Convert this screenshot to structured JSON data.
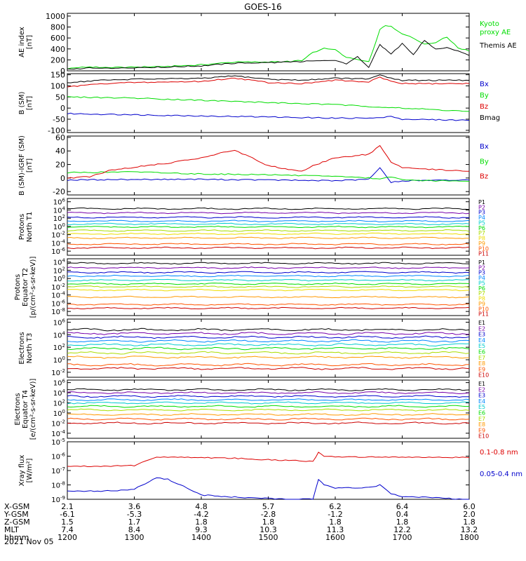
{
  "title": "GOES-16",
  "date": "2021 Nov 05",
  "chart_data": [
    {
      "type": "line",
      "ylabel": [
        "AE index",
        "[nT]"
      ],
      "yticks": [
        "0",
        "200",
        "400",
        "600",
        "800",
        "1000"
      ],
      "ylim": [
        0,
        1050
      ],
      "log": false,
      "series": [
        {
          "name": "Kyoto proxy AE",
          "color": "#00dd00",
          "x": [
            1200,
            1210,
            1220,
            1240,
            1300,
            1330,
            1400,
            1430,
            1500,
            1520,
            1530,
            1540,
            1550,
            1600,
            1610,
            1620,
            1630,
            1640,
            1645,
            1650,
            1700,
            1710,
            1720,
            1730,
            1740,
            1750,
            1800
          ],
          "values": [
            40,
            60,
            70,
            60,
            70,
            80,
            110,
            160,
            160,
            170,
            190,
            330,
            420,
            380,
            250,
            200,
            160,
            750,
            820,
            810,
            680,
            600,
            480,
            520,
            620,
            420,
            360
          ]
        },
        {
          "name": "Themis AE",
          "color": "#000000",
          "x": [
            1200,
            1220,
            1240,
            1300,
            1330,
            1400,
            1430,
            1500,
            1520,
            1540,
            1550,
            1600,
            1610,
            1620,
            1630,
            1640,
            1645,
            1650,
            1700,
            1710,
            1720,
            1730,
            1740,
            1750,
            1800
          ],
          "values": [
            30,
            50,
            40,
            60,
            70,
            90,
            140,
            150,
            160,
            180,
            190,
            180,
            130,
            260,
            60,
            480,
            390,
            300,
            500,
            300,
            560,
            390,
            420,
            360,
            280
          ]
        }
      ],
      "legend": [
        {
          "text": [
            "Kyoto",
            "proxy AE"
          ],
          "color": "#00dd00"
        },
        {
          "text": [
            "Themis AE"
          ],
          "color": "#000000"
        }
      ]
    },
    {
      "type": "line",
      "ylabel": [
        "B (SM)",
        "[nT]"
      ],
      "yticks": [
        "-100",
        "-50",
        "0",
        "50",
        "100",
        "150"
      ],
      "ylim": [
        -110,
        155
      ],
      "log": false,
      "series": [
        {
          "name": "Bx",
          "color": "#0000cc",
          "x": [
            1200,
            1300,
            1400,
            1500,
            1600,
            1640,
            1650,
            1700,
            1800
          ],
          "values": [
            -25,
            -30,
            -35,
            -40,
            -45,
            -45,
            -35,
            -50,
            -55
          ]
        },
        {
          "name": "By",
          "color": "#00dd00",
          "x": [
            1200,
            1300,
            1400,
            1500,
            1600,
            1700,
            1800
          ],
          "values": [
            50,
            45,
            35,
            25,
            15,
            0,
            -15
          ]
        },
        {
          "name": "Bz",
          "color": "#dd0000",
          "x": [
            1200,
            1230,
            1300,
            1400,
            1430,
            1500,
            1530,
            1600,
            1630,
            1640,
            1650,
            1700,
            1800
          ],
          "values": [
            95,
            110,
            115,
            120,
            135,
            115,
            110,
            125,
            118,
            140,
            120,
            110,
            110
          ]
        },
        {
          "name": "Bmag",
          "color": "#000000",
          "x": [
            1200,
            1230,
            1300,
            1400,
            1430,
            1500,
            1530,
            1600,
            1630,
            1640,
            1650,
            1700,
            1800
          ],
          "values": [
            115,
            125,
            130,
            133,
            145,
            130,
            125,
            135,
            130,
            150,
            135,
            125,
            125
          ]
        }
      ],
      "legend": [
        {
          "text": [
            "Bx"
          ],
          "color": "#0000cc"
        },
        {
          "text": [
            "By"
          ],
          "color": "#00dd00"
        },
        {
          "text": [
            "Bz"
          ],
          "color": "#dd0000"
        },
        {
          "text": [
            "Bmag"
          ],
          "color": "#000000"
        }
      ]
    },
    {
      "type": "line",
      "ylabel": [
        "B (SM)-IGRF (SM)",
        "[nT]"
      ],
      "yticks": [
        "-20",
        "0",
        "20",
        "40",
        "60"
      ],
      "ylim": [
        -25,
        62
      ],
      "log": false,
      "series": [
        {
          "name": "Bx",
          "color": "#0000cc",
          "x": [
            1200,
            1300,
            1400,
            1500,
            1600,
            1630,
            1640,
            1650,
            1700,
            1800
          ],
          "values": [
            -3,
            -2,
            -2,
            -3,
            -4,
            -2,
            15,
            -6,
            -4,
            -3
          ]
        },
        {
          "name": "By",
          "color": "#00dd00",
          "x": [
            1200,
            1300,
            1400,
            1500,
            1600,
            1630,
            1640,
            1650,
            1700,
            1800
          ],
          "values": [
            8,
            9,
            6,
            5,
            2,
            0,
            -2,
            2,
            -3,
            -5
          ]
        },
        {
          "name": "Bz",
          "color": "#dd0000",
          "x": [
            1200,
            1220,
            1240,
            1300,
            1330,
            1400,
            1420,
            1430,
            1440,
            1500,
            1530,
            1540,
            1600,
            1630,
            1640,
            1650,
            1700,
            1800
          ],
          "values": [
            0,
            2,
            12,
            16,
            22,
            30,
            38,
            40,
            34,
            18,
            10,
            18,
            30,
            35,
            48,
            24,
            15,
            10
          ]
        }
      ],
      "legend": [
        {
          "text": [
            "Bx"
          ],
          "color": "#0000cc"
        },
        {
          "text": [
            "By"
          ],
          "color": "#00dd00"
        },
        {
          "text": [
            "Bz"
          ],
          "color": "#dd0000"
        }
      ]
    },
    {
      "type": "line",
      "ylabel": [
        "Protons",
        "North T1"
      ],
      "yticks": [
        "10^-6",
        "10^-4",
        "10^-2",
        "10^0",
        "10^2",
        "10^4",
        "10^6"
      ],
      "ylim": [
        -7,
        6.8
      ],
      "log": true,
      "series": [
        {
          "name": "P1",
          "color": "#000000",
          "level": 4.3
        },
        {
          "name": "P2",
          "color": "#7700aa",
          "level": 3.3
        },
        {
          "name": "P3",
          "color": "#0000cc",
          "level": 2.2
        },
        {
          "name": "P4",
          "color": "#0088ff",
          "level": 1.3
        },
        {
          "name": "P5",
          "color": "#00cccc",
          "level": 0.6
        },
        {
          "name": "P6",
          "color": "#00dd00",
          "level": -0.1
        },
        {
          "name": "P7",
          "color": "#aadd00",
          "level": -1.0
        },
        {
          "name": "P8",
          "color": "#eedd00",
          "level": -1.8
        },
        {
          "name": "P9",
          "color": "#ff9900",
          "level": -2.8
        },
        {
          "name": "P10",
          "color": "#ff5500",
          "level": -4.3
        },
        {
          "name": "P11",
          "color": "#cc0000",
          "level": -5.2
        }
      ]
    },
    {
      "type": "line",
      "ylabel": [
        "Protons",
        "Equator T2",
        "[p/(cm²-s-sr-keV)]"
      ],
      "yticks": [
        "10^-8",
        "10^-6",
        "10^-4",
        "10^-2",
        "10^0",
        "10^2",
        "10^4"
      ],
      "ylim": [
        -9,
        4.8
      ],
      "log": true,
      "series": [
        {
          "name": "P1",
          "color": "#000000",
          "level": 3.7
        },
        {
          "name": "P2",
          "color": "#7700aa",
          "level": 2.6
        },
        {
          "name": "P3",
          "color": "#0000cc",
          "level": 1.5
        },
        {
          "name": "P4",
          "color": "#0088ff",
          "level": 0.6
        },
        {
          "name": "P5",
          "color": "#00cccc",
          "level": -0.4
        },
        {
          "name": "P6",
          "color": "#00dd00",
          "level": -1.3
        },
        {
          "name": "P7",
          "color": "#aadd00",
          "level": -2.0
        },
        {
          "name": "P8",
          "color": "#eedd00",
          "level": -2.8
        },
        {
          "name": "P9",
          "color": "#ff9900",
          "level": -4.5
        },
        {
          "name": "P10",
          "color": "#ff5500",
          "level": -6.3
        },
        {
          "name": "P11",
          "color": "#cc0000",
          "level": -7.2
        }
      ]
    },
    {
      "type": "line",
      "ylabel": [
        "Electrons",
        "North T3"
      ],
      "yticks": [
        "10^-2",
        "10^0",
        "10^2",
        "10^4",
        "10^6"
      ],
      "ylim": [
        -2.8,
        6.5
      ],
      "log": true,
      "series": [
        {
          "name": "E1",
          "color": "#000000",
          "level": 4.8
        },
        {
          "name": "E2",
          "color": "#7700aa",
          "level": 4.2
        },
        {
          "name": "E3",
          "color": "#0000cc",
          "level": 3.6
        },
        {
          "name": "E4",
          "color": "#0088ff",
          "level": 3.0
        },
        {
          "name": "E5",
          "color": "#00cccc",
          "level": 2.4
        },
        {
          "name": "E6",
          "color": "#00dd00",
          "level": 1.8
        },
        {
          "name": "E7",
          "color": "#aadd00",
          "level": 1.1
        },
        {
          "name": "E8",
          "color": "#ff9900",
          "level": 0.4
        },
        {
          "name": "E9",
          "color": "#ff5500",
          "level": -0.8
        },
        {
          "name": "E10",
          "color": "#cc0000",
          "level": -1.4
        }
      ]
    },
    {
      "type": "line",
      "ylabel": [
        "Electrons",
        "Equator T4",
        "[e/(cm²-s-sr-keV)]"
      ],
      "yticks": [
        "10^-4",
        "10^-2",
        "10^0",
        "10^2",
        "10^4",
        "10^6"
      ],
      "ylim": [
        -5,
        6.5
      ],
      "log": true,
      "series": [
        {
          "name": "E1",
          "color": "#000000",
          "level": 4.6
        },
        {
          "name": "E2",
          "color": "#7700aa",
          "level": 4.0
        },
        {
          "name": "E3",
          "color": "#0000cc",
          "level": 3.3
        },
        {
          "name": "E4",
          "color": "#0088ff",
          "level": 2.6
        },
        {
          "name": "E5",
          "color": "#00cccc",
          "level": 2.0
        },
        {
          "name": "E6",
          "color": "#00dd00",
          "level": 1.3
        },
        {
          "name": "E7",
          "color": "#aadd00",
          "level": 0.6
        },
        {
          "name": "E8",
          "color": "#ff9900",
          "level": -0.3
        },
        {
          "name": "E9",
          "color": "#ff5500",
          "level": -1.2
        },
        {
          "name": "E10",
          "color": "#cc0000",
          "level": -2.0
        }
      ]
    },
    {
      "type": "line",
      "ylabel": [
        "Xray flux",
        "[W/m²]"
      ],
      "yticks": [
        "10^-9",
        "10^-8",
        "10^-7",
        "10^-6",
        "10^-5"
      ],
      "ylim": [
        -9,
        -5
      ],
      "log": true,
      "series": [
        {
          "name": "0.1-0.8 nm",
          "color": "#dd0000",
          "x": [
            1200,
            1230,
            1300,
            1310,
            1320,
            1330,
            1400,
            1430,
            1500,
            1540,
            1545,
            1550,
            1600,
            1700,
            1800
          ],
          "values": [
            -6.7,
            -6.7,
            -6.65,
            -6.3,
            -6.05,
            -6.05,
            -6.1,
            -6.15,
            -6.25,
            -6.35,
            -5.75,
            -6.0,
            -6.05,
            -6.05,
            -6.1
          ]
        },
        {
          "name": "0.05-0.4 nm",
          "color": "#0000cc",
          "x": [
            1200,
            1230,
            1300,
            1310,
            1320,
            1330,
            1350,
            1400,
            1430,
            1500,
            1540,
            1545,
            1550,
            1600,
            1630,
            1640,
            1650,
            1700,
            1800
          ],
          "values": [
            -8.4,
            -8.45,
            -8.3,
            -7.9,
            -7.5,
            -7.6,
            -8.3,
            -8.7,
            -8.85,
            -8.95,
            -9.0,
            -7.6,
            -8.0,
            -8.2,
            -8.2,
            -8.0,
            -8.6,
            -8.8,
            -9.0
          ]
        }
      ],
      "legend": [
        {
          "text": [
            "0.1-0.8 nm"
          ],
          "color": "#dd0000"
        },
        {
          "text": [
            "0.05-0.4 nm"
          ],
          "color": "#0000cc"
        }
      ]
    }
  ],
  "footer": {
    "row_labels": [
      "X-GSM",
      "Y-GSM",
      "Z-GSM",
      "MLT",
      "hhmm"
    ],
    "columns": [
      [
        "2.1",
        "-6.1",
        "1.5",
        "7.4",
        "1200"
      ],
      [
        "3.6",
        "-5.3",
        "1.7",
        "8.4",
        "1300"
      ],
      [
        "4.8",
        "-4.2",
        "1.8",
        "9.3",
        "1400"
      ],
      [
        "5.7",
        "-2.8",
        "1.8",
        "10.3",
        "1500"
      ],
      [
        "6.2",
        "-1.2",
        "1.8",
        "11.3",
        "1600"
      ],
      [
        "6.4",
        "0.4",
        "1.8",
        "12.2",
        "1700"
      ],
      [
        "6.0",
        "2.0",
        "1.8",
        "13.2",
        "1800"
      ]
    ]
  }
}
